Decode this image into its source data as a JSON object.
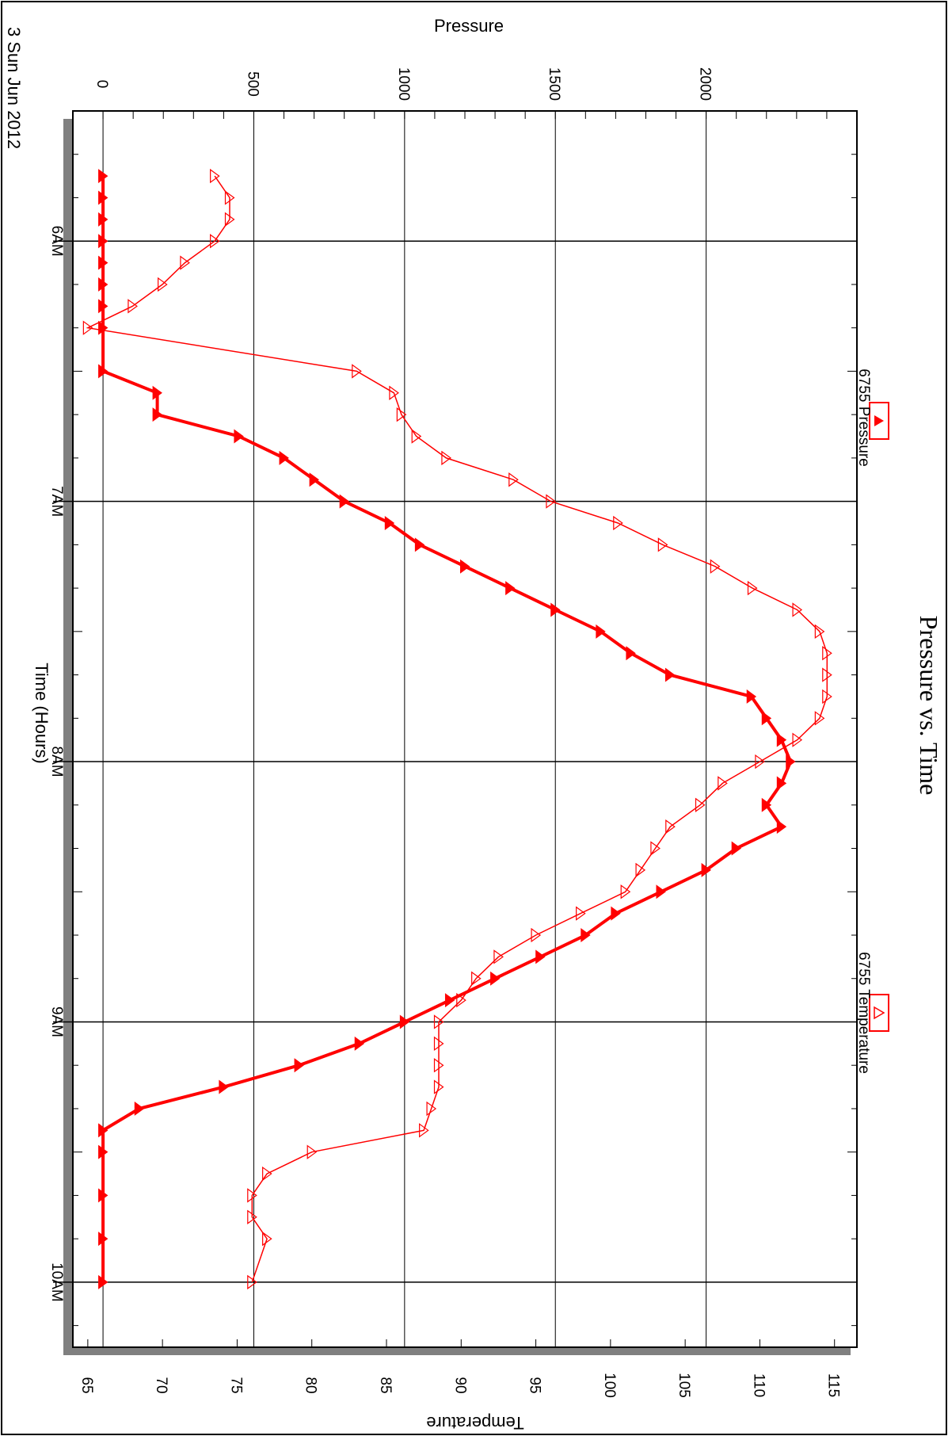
{
  "chart_data": {
    "type": "line",
    "title": "Pressure vs. Time",
    "date_label": "3 Sun Jun 2012",
    "xlabel": "Time (Hours)",
    "x_ticks": [
      "6AM",
      "7AM",
      "8AM",
      "9AM",
      "10AM"
    ],
    "x_range": [
      "05:30",
      "10:15"
    ],
    "y_axes": [
      {
        "title": "Pressure",
        "range": [
          -100,
          2500
        ],
        "ticks": [
          0,
          500,
          1000,
          1500,
          2000
        ]
      },
      {
        "title": "Temperature",
        "range": [
          64,
          116.5
        ],
        "ticks": [
          65,
          70,
          75,
          80,
          85,
          90,
          95,
          100,
          105,
          110,
          115
        ]
      }
    ],
    "grid": true,
    "legend_position": "right",
    "colors": {
      "series": "#ff0000",
      "frame": "#000000",
      "shadow": "#808080"
    },
    "series": [
      {
        "name": "6755 Pressure",
        "axis": "Pressure",
        "marker": "filled-triangle",
        "x": [
          "05:45",
          "05:50",
          "05:55",
          "06:00",
          "06:05",
          "06:10",
          "06:15",
          "06:20",
          "06:30",
          "06:35",
          "06:40",
          "06:45",
          "06:50",
          "06:55",
          "07:00",
          "07:05",
          "07:10",
          "07:15",
          "07:20",
          "07:25",
          "07:30",
          "07:35",
          "07:40",
          "07:45",
          "07:50",
          "07:55",
          "08:00",
          "08:05",
          "08:10",
          "08:15",
          "08:20",
          "08:25",
          "08:30",
          "08:35",
          "08:40",
          "08:45",
          "08:50",
          "08:55",
          "09:00",
          "09:05",
          "09:10",
          "09:15",
          "09:20",
          "09:25",
          "09:30",
          "09:40",
          "09:50",
          "10:00"
        ],
        "y": [
          0,
          0,
          0,
          0,
          0,
          0,
          0,
          0,
          0,
          180,
          180,
          450,
          600,
          700,
          800,
          950,
          1050,
          1200,
          1350,
          1500,
          1650,
          1750,
          1880,
          2150,
          2200,
          2250,
          2280,
          2250,
          2200,
          2250,
          2100,
          2000,
          1850,
          1700,
          1600,
          1450,
          1300,
          1150,
          1000,
          850,
          650,
          400,
          120,
          0,
          0,
          0,
          0,
          0
        ]
      },
      {
        "name": "6755 Temperature",
        "axis": "Temperature",
        "marker": "open-triangle",
        "x": [
          "05:45",
          "05:50",
          "05:55",
          "06:00",
          "06:05",
          "06:10",
          "06:15",
          "06:20",
          "06:30",
          "06:35",
          "06:40",
          "06:45",
          "06:50",
          "06:55",
          "07:00",
          "07:05",
          "07:10",
          "07:15",
          "07:20",
          "07:25",
          "07:30",
          "07:35",
          "07:40",
          "07:45",
          "07:50",
          "07:55",
          "08:00",
          "08:05",
          "08:10",
          "08:15",
          "08:20",
          "08:25",
          "08:30",
          "08:35",
          "08:40",
          "08:45",
          "08:50",
          "08:55",
          "09:00",
          "09:05",
          "09:10",
          "09:15",
          "09:20",
          "09:25",
          "09:30",
          "09:35",
          "09:40",
          "09:45",
          "09:50",
          "10:00"
        ],
        "y": [
          73.5,
          74.5,
          74.5,
          73.5,
          71.5,
          70,
          68,
          65,
          83,
          85.5,
          86,
          87,
          89,
          93.5,
          96,
          100.5,
          103.5,
          107,
          109.5,
          112.5,
          114,
          114.5,
          114.5,
          114.5,
          114,
          112.5,
          110,
          107.5,
          106,
          104,
          103,
          102,
          101,
          98,
          95,
          92.5,
          91,
          90,
          88.5,
          88.5,
          88.5,
          88.5,
          88,
          87.5,
          80,
          77,
          76,
          76,
          77,
          76
        ]
      }
    ]
  }
}
